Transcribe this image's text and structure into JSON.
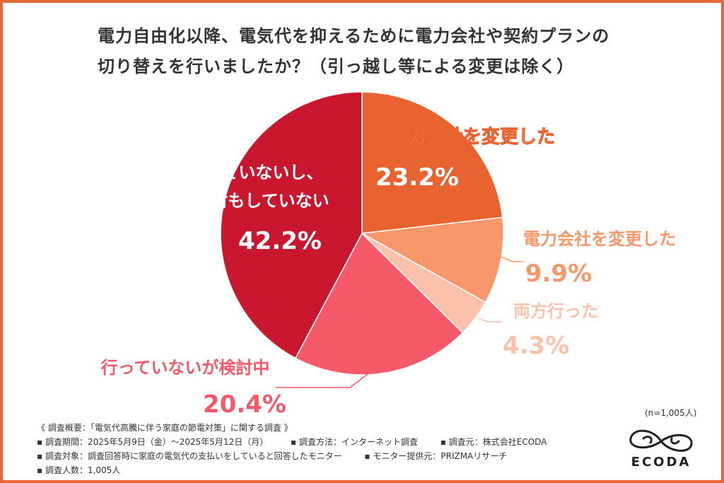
{
  "title": {
    "line1": "電力自由化以降、電気代を抑えるために電力会社や契約プランの",
    "line2": "切り替えを行いましたか？（引っ越し等による変更は除く）"
  },
  "colors": {
    "border": "#e8673a",
    "slice_company": "#e8632f",
    "slice_plan": "#f7976a",
    "slice_both": "#fbc1ab",
    "slice_considering": "#f5596a",
    "slice_none": "#c8172e"
  },
  "chart_data": {
    "type": "pie",
    "title": "電力自由化以降、電気代を抑えるために電力会社や契約プランの切り替えを行いましたか？（引っ越し等による変更は除く）",
    "slices": [
      {
        "label": "電力会社を変更した",
        "value": 23.2,
        "value_label": "23.2%",
        "color": "#e8632f"
      },
      {
        "label": "電力会社を変更した",
        "value": 9.9,
        "value_label": "9.9%",
        "color": "#f7976a"
      },
      {
        "label": "両方行った",
        "value": 4.3,
        "value_label": "4.3%",
        "color": "#fbc1ab"
      },
      {
        "label": "行っていないが検討中",
        "value": 20.4,
        "value_label": "20.4%",
        "color": "#f5596a"
      },
      {
        "label_lines": [
          "行っていないし、",
          "検討もしていない"
        ],
        "value": 42.2,
        "value_label": "42.2%",
        "color": "#c8172e"
      }
    ],
    "start": "12 o'clock",
    "direction": "clockwise"
  },
  "footer": {
    "summary": "《 調査概要：「電気代高騰に伴う家庭の節電対策」に関する調査 》",
    "period": "▪ 調査期間：2025年5月9日（金）〜2025年5月12日（月）",
    "method": "▪ 調査方法：インターネット調査",
    "source": "▪ 調査元：株式会社ECODA",
    "target": "▪ 調査対象：調査回答時に家庭の電気代の支払いをしていると回答したモニター",
    "provider": "▪ モニター提供元：PRIZMAリサーチ",
    "count": "▪ 調査人数：1,005人"
  },
  "sample_note": "(n=1,005人)",
  "logo": {
    "text": "ECODA"
  }
}
